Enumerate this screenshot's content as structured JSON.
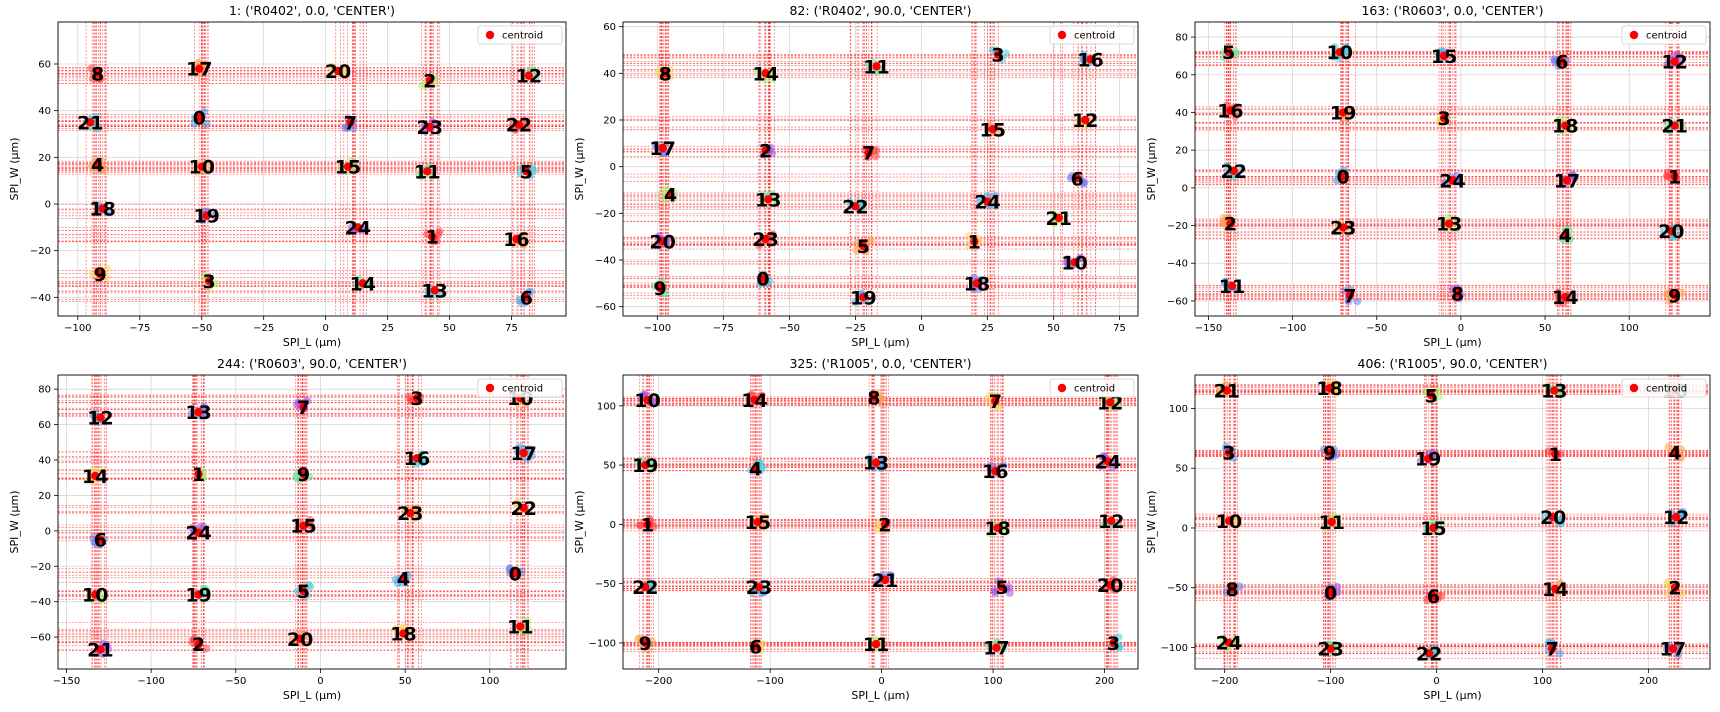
{
  "figure": {
    "legend_label": "centroid",
    "centroid_color": "#ff0000",
    "xlabel": "SPI_L (µm)",
    "ylabel": "SPI_W (µm)"
  },
  "chart_data": [
    {
      "type": "scatter",
      "title": "1: ('R0402', 0.0, 'CENTER')",
      "xlabel": "SPI_L (µm)",
      "ylabel": "SPI_W (µm)",
      "xlim": [
        -108,
        97
      ],
      "ylim": [
        -48,
        78
      ],
      "xticks": [
        -100,
        -75,
        -50,
        -25,
        0,
        25,
        50,
        75
      ],
      "yticks": [
        -40,
        -20,
        0,
        20,
        40,
        60
      ],
      "grid": true,
      "legend": "top-right",
      "points": [
        {
          "label": "8",
          "x": -92,
          "y": 56
        },
        {
          "label": "17",
          "x": -51,
          "y": 58
        },
        {
          "label": "20",
          "x": 5,
          "y": 57
        },
        {
          "label": "2",
          "x": 42,
          "y": 53
        },
        {
          "label": "12",
          "x": 82,
          "y": 55
        },
        {
          "label": "21",
          "x": -95,
          "y": 35
        },
        {
          "label": "0",
          "x": -51,
          "y": 37
        },
        {
          "label": "7",
          "x": 10,
          "y": 35
        },
        {
          "label": "23",
          "x": 42,
          "y": 33
        },
        {
          "label": "22",
          "x": 78,
          "y": 34
        },
        {
          "label": "4",
          "x": -92,
          "y": 17
        },
        {
          "label": "10",
          "x": -50,
          "y": 16
        },
        {
          "label": "15",
          "x": 9,
          "y": 16
        },
        {
          "label": "11",
          "x": 41,
          "y": 14
        },
        {
          "label": "5",
          "x": 81,
          "y": 14
        },
        {
          "label": "18",
          "x": -90,
          "y": -2
        },
        {
          "label": "19",
          "x": -48,
          "y": -5
        },
        {
          "label": "24",
          "x": 13,
          "y": -10
        },
        {
          "label": "1",
          "x": 43,
          "y": -14
        },
        {
          "label": "16",
          "x": 77,
          "y": -15
        },
        {
          "label": "9",
          "x": -91,
          "y": -30
        },
        {
          "label": "3",
          "x": -47,
          "y": -33
        },
        {
          "label": "14",
          "x": 15,
          "y": -34
        },
        {
          "label": "13",
          "x": 44,
          "y": -37
        },
        {
          "label": "6",
          "x": 81,
          "y": -40
        }
      ]
    },
    {
      "type": "scatter",
      "title": "82: ('R0402', 90.0, 'CENTER')",
      "xlabel": "SPI_L (µm)",
      "ylabel": "SPI_W (µm)",
      "xlim": [
        -113,
        82
      ],
      "ylim": [
        -64,
        62
      ],
      "xticks": [
        -100,
        -75,
        -50,
        -25,
        0,
        25,
        50,
        75
      ],
      "yticks": [
        -60,
        -40,
        -20,
        0,
        20,
        40,
        60
      ],
      "grid": true,
      "legend": "top-right",
      "points": [
        {
          "label": "8",
          "x": -97,
          "y": 40
        },
        {
          "label": "14",
          "x": -59,
          "y": 40
        },
        {
          "label": "11",
          "x": -17,
          "y": 43
        },
        {
          "label": "3",
          "x": 29,
          "y": 48
        },
        {
          "label": "16",
          "x": 64,
          "y": 46
        },
        {
          "label": "17",
          "x": -98,
          "y": 8
        },
        {
          "label": "2",
          "x": -59,
          "y": 7
        },
        {
          "label": "7",
          "x": -20,
          "y": 6
        },
        {
          "label": "15",
          "x": 27,
          "y": 16
        },
        {
          "label": "12",
          "x": 62,
          "y": 20
        },
        {
          "label": "4",
          "x": -95,
          "y": -12
        },
        {
          "label": "13",
          "x": -58,
          "y": -14
        },
        {
          "label": "22",
          "x": -25,
          "y": -17
        },
        {
          "label": "24",
          "x": 25,
          "y": -15
        },
        {
          "label": "6",
          "x": 59,
          "y": -5
        },
        {
          "label": "20",
          "x": -98,
          "y": -32
        },
        {
          "label": "23",
          "x": -59,
          "y": -31
        },
        {
          "label": "5",
          "x": -22,
          "y": -34
        },
        {
          "label": "1",
          "x": 20,
          "y": -32
        },
        {
          "label": "21",
          "x": 52,
          "y": -22
        },
        {
          "label": "9",
          "x": -99,
          "y": -52
        },
        {
          "label": "0",
          "x": -60,
          "y": -48
        },
        {
          "label": "19",
          "x": -22,
          "y": -56
        },
        {
          "label": "18",
          "x": 21,
          "y": -50
        },
        {
          "label": "10",
          "x": 58,
          "y": -41
        }
      ]
    },
    {
      "type": "scatter",
      "title": "163: ('R0603', 0.0, 'CENTER')",
      "xlabel": "SPI_L (µm)",
      "ylabel": "SPI_W (µm)",
      "xlim": [
        -158,
        148
      ],
      "ylim": [
        -68,
        88
      ],
      "xticks": [
        -150,
        -100,
        -50,
        0,
        50,
        100
      ],
      "yticks": [
        -60,
        -40,
        -20,
        0,
        20,
        40,
        60,
        80
      ],
      "grid": true,
      "legend": "top-right",
      "points": [
        {
          "label": "5",
          "x": -138,
          "y": 72
        },
        {
          "label": "10",
          "x": -72,
          "y": 72
        },
        {
          "label": "15",
          "x": -10,
          "y": 70
        },
        {
          "label": "6",
          "x": 60,
          "y": 67
        },
        {
          "label": "12",
          "x": 127,
          "y": 67
        },
        {
          "label": "16",
          "x": -137,
          "y": 41
        },
        {
          "label": "19",
          "x": -70,
          "y": 40
        },
        {
          "label": "3",
          "x": -10,
          "y": 37
        },
        {
          "label": "18",
          "x": 62,
          "y": 33
        },
        {
          "label": "21",
          "x": 127,
          "y": 33
        },
        {
          "label": "22",
          "x": -135,
          "y": 9
        },
        {
          "label": "0",
          "x": -70,
          "y": 6
        },
        {
          "label": "24",
          "x": -5,
          "y": 4
        },
        {
          "label": "17",
          "x": 63,
          "y": 4
        },
        {
          "label": "1",
          "x": 127,
          "y": 6
        },
        {
          "label": "2",
          "x": -137,
          "y": -19
        },
        {
          "label": "23",
          "x": -70,
          "y": -21
        },
        {
          "label": "13",
          "x": -7,
          "y": -19
        },
        {
          "label": "4",
          "x": 62,
          "y": -25
        },
        {
          "label": "20",
          "x": 125,
          "y": -23
        },
        {
          "label": "11",
          "x": -136,
          "y": -52
        },
        {
          "label": "7",
          "x": -66,
          "y": -57
        },
        {
          "label": "8",
          "x": -2,
          "y": -56
        },
        {
          "label": "14",
          "x": 62,
          "y": -58
        },
        {
          "label": "9",
          "x": 127,
          "y": -57
        }
      ]
    },
    {
      "type": "scatter",
      "title": "244: ('R0603', 90.0, 'CENTER')",
      "xlabel": "SPI_L (µm)",
      "ylabel": "SPI_W (µm)",
      "xlim": [
        -155,
        145
      ],
      "ylim": [
        -78,
        88
      ],
      "xticks": [
        -150,
        -100,
        -50,
        0,
        50,
        100
      ],
      "yticks": [
        -60,
        -40,
        -20,
        0,
        20,
        40,
        60,
        80
      ],
      "grid": true,
      "legend": "top-right",
      "points": [
        {
          "label": "12",
          "x": -130,
          "y": 64
        },
        {
          "label": "13",
          "x": -72,
          "y": 67
        },
        {
          "label": "7",
          "x": -10,
          "y": 70
        },
        {
          "label": "3",
          "x": 57,
          "y": 75
        },
        {
          "label": "10",
          "x": 118,
          "y": 75
        },
        {
          "label": "14",
          "x": -133,
          "y": 31
        },
        {
          "label": "1",
          "x": -72,
          "y": 32
        },
        {
          "label": "9",
          "x": -10,
          "y": 32
        },
        {
          "label": "16",
          "x": 57,
          "y": 41
        },
        {
          "label": "17",
          "x": 120,
          "y": 44
        },
        {
          "label": "6",
          "x": -130,
          "y": -5
        },
        {
          "label": "24",
          "x": -72,
          "y": -1
        },
        {
          "label": "15",
          "x": -10,
          "y": 3
        },
        {
          "label": "23",
          "x": 53,
          "y": 10
        },
        {
          "label": "22",
          "x": 120,
          "y": 13
        },
        {
          "label": "10",
          "x": -133,
          "y": -36
        },
        {
          "label": "19",
          "x": -72,
          "y": -36
        },
        {
          "label": "5",
          "x": -10,
          "y": -34
        },
        {
          "label": "4",
          "x": 49,
          "y": -27
        },
        {
          "label": "0",
          "x": 115,
          "y": -24
        },
        {
          "label": "21",
          "x": -130,
          "y": -67
        },
        {
          "label": "2",
          "x": -72,
          "y": -64
        },
        {
          "label": "20",
          "x": -12,
          "y": -61
        },
        {
          "label": "18",
          "x": 49,
          "y": -58
        },
        {
          "label": "11",
          "x": 118,
          "y": -54
        }
      ]
    },
    {
      "type": "scatter",
      "title": "325: ('R1005', 0.0, 'CENTER')",
      "xlabel": "SPI_L (µm)",
      "ylabel": "SPI_W (µm)",
      "xlim": [
        -232,
        230
      ],
      "ylim": [
        -122,
        126
      ],
      "xticks": [
        -200,
        -100,
        0,
        100,
        200
      ],
      "yticks": [
        -100,
        -50,
        0,
        50,
        100
      ],
      "grid": true,
      "legend": "top-right",
      "points": [
        {
          "label": "10",
          "x": -210,
          "y": 105
        },
        {
          "label": "14",
          "x": -114,
          "y": 105
        },
        {
          "label": "8",
          "x": -7,
          "y": 107
        },
        {
          "label": "7",
          "x": 102,
          "y": 104
        },
        {
          "label": "12",
          "x": 205,
          "y": 103
        },
        {
          "label": "19",
          "x": -212,
          "y": 50
        },
        {
          "label": "4",
          "x": -113,
          "y": 47
        },
        {
          "label": "13",
          "x": -5,
          "y": 52
        },
        {
          "label": "16",
          "x": 102,
          "y": 45
        },
        {
          "label": "24",
          "x": 203,
          "y": 53
        },
        {
          "label": "1",
          "x": -210,
          "y": 0
        },
        {
          "label": "15",
          "x": -111,
          "y": 2
        },
        {
          "label": "2",
          "x": 3,
          "y": 0
        },
        {
          "label": "18",
          "x": 104,
          "y": -3
        },
        {
          "label": "12",
          "x": 206,
          "y": 3
        },
        {
          "label": "22",
          "x": -212,
          "y": -53
        },
        {
          "label": "23",
          "x": -110,
          "y": -53
        },
        {
          "label": "21",
          "x": 3,
          "y": -47
        },
        {
          "label": "5",
          "x": 108,
          "y": -53
        },
        {
          "label": "20",
          "x": 205,
          "y": -51
        },
        {
          "label": "9",
          "x": -212,
          "y": -100
        },
        {
          "label": "6",
          "x": -113,
          "y": -103
        },
        {
          "label": "11",
          "x": -5,
          "y": -101
        },
        {
          "label": "17",
          "x": 103,
          "y": -104
        },
        {
          "label": "3",
          "x": 208,
          "y": -100
        }
      ]
    },
    {
      "type": "scatter",
      "title": "406: ('R1005', 90.0, 'CENTER')",
      "xlabel": "SPI_L (µm)",
      "ylabel": "SPI_W (µm)",
      "xlim": [
        -228,
        258
      ],
      "ylim": [
        -118,
        128
      ],
      "xticks": [
        -200,
        -100,
        0,
        100,
        200
      ],
      "yticks": [
        -100,
        -50,
        0,
        50,
        100
      ],
      "grid": true,
      "legend": "top-right",
      "points": [
        {
          "label": "21",
          "x": -198,
          "y": 115
        },
        {
          "label": "18",
          "x": -101,
          "y": 117
        },
        {
          "label": "5",
          "x": -5,
          "y": 111
        },
        {
          "label": "13",
          "x": 111,
          "y": 115
        },
        {
          "label": "10",
          "x": 225,
          "y": 115
        },
        {
          "label": "3",
          "x": -196,
          "y": 63
        },
        {
          "label": "9",
          "x": -101,
          "y": 63
        },
        {
          "label": "19",
          "x": -8,
          "y": 58
        },
        {
          "label": "1",
          "x": 112,
          "y": 62
        },
        {
          "label": "4",
          "x": 225,
          "y": 63
        },
        {
          "label": "10",
          "x": -196,
          "y": 6
        },
        {
          "label": "11",
          "x": -99,
          "y": 5
        },
        {
          "label": "15",
          "x": -3,
          "y": 0
        },
        {
          "label": "20",
          "x": 110,
          "y": 9
        },
        {
          "label": "12",
          "x": 226,
          "y": 9
        },
        {
          "label": "8",
          "x": -193,
          "y": -51
        },
        {
          "label": "0",
          "x": -100,
          "y": -54
        },
        {
          "label": "6",
          "x": -3,
          "y": -57
        },
        {
          "label": "14",
          "x": 112,
          "y": -51
        },
        {
          "label": "2",
          "x": 225,
          "y": -50
        },
        {
          "label": "24",
          "x": -196,
          "y": -96
        },
        {
          "label": "23",
          "x": -100,
          "y": -101
        },
        {
          "label": "22",
          "x": -7,
          "y": -105
        },
        {
          "label": "7",
          "x": 109,
          "y": -101
        },
        {
          "label": "17",
          "x": 223,
          "y": -101
        }
      ]
    }
  ]
}
